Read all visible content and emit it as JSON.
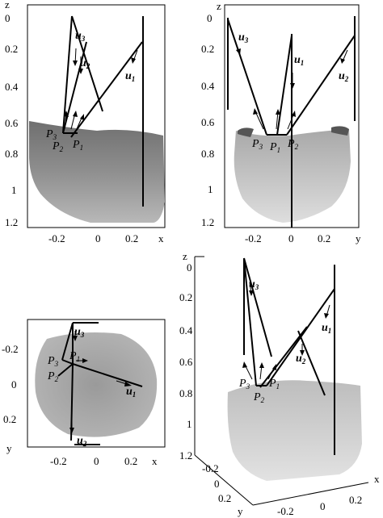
{
  "panels": {
    "top_left": {
      "vertical_axis_label": "z",
      "horizontal_axis_label": "x",
      "vertical_ticks": [
        "0",
        "0.2",
        "0.4",
        "0.6",
        "0.8",
        "1",
        "1.2"
      ],
      "horizontal_ticks": [
        "-0.2",
        "0",
        "0.2"
      ],
      "vectors": [
        {
          "main": "u",
          "sub": "3"
        },
        {
          "main": "u",
          "sub": "2"
        },
        {
          "main": "u",
          "sub": "1"
        }
      ],
      "points": [
        {
          "main": "P",
          "sub": "3"
        },
        {
          "main": "P",
          "sub": "2"
        },
        {
          "main": "P",
          "sub": "1"
        }
      ]
    },
    "top_right": {
      "vertical_axis_label": "z",
      "horizontal_axis_label": "y",
      "vertical_ticks": [
        "0",
        "0.2",
        "0.4",
        "0.6",
        "0.8",
        "1",
        "1.2"
      ],
      "horizontal_ticks": [
        "-0.2",
        "0",
        "0.2"
      ],
      "vectors": [
        {
          "main": "u",
          "sub": "3"
        },
        {
          "main": "u",
          "sub": "1"
        },
        {
          "main": "u",
          "sub": "2"
        }
      ],
      "points": [
        {
          "main": "P",
          "sub": "3"
        },
        {
          "main": "P",
          "sub": "1"
        },
        {
          "main": "P",
          "sub": "2"
        }
      ]
    },
    "bottom_left": {
      "vertical_axis_label": "y",
      "horizontal_axis_label": "x",
      "vertical_ticks": [
        "-0.2",
        "0",
        "0.2"
      ],
      "horizontal_ticks": [
        "-0.2",
        "0",
        "0.2"
      ],
      "vectors": [
        {
          "main": "u",
          "sub": "3"
        },
        {
          "main": "u",
          "sub": "1"
        },
        {
          "main": "u",
          "sub": "2"
        }
      ],
      "points": [
        {
          "main": "P",
          "sub": "3"
        },
        {
          "main": "P",
          "sub": "1"
        },
        {
          "main": "P",
          "sub": "2"
        }
      ]
    },
    "bottom_right": {
      "vertical_axis_label": "z",
      "x_axis_label": "x",
      "y_axis_label": "y",
      "vertical_ticks": [
        "0",
        "0.2",
        "0.4",
        "0.6",
        "0.8",
        "1",
        "1.2"
      ],
      "x_ticks": [
        "-0.2",
        "0",
        "0.2"
      ],
      "y_ticks": [
        "-0.2",
        "0",
        "0.2"
      ],
      "vectors": [
        {
          "main": "u",
          "sub": "3"
        },
        {
          "main": "u",
          "sub": "1"
        },
        {
          "main": "u",
          "sub": "2"
        }
      ],
      "points": [
        {
          "main": "P",
          "sub": "3"
        },
        {
          "main": "P",
          "sub": "1"
        },
        {
          "main": "P",
          "sub": "2"
        }
      ]
    }
  },
  "colors": {
    "background": "#ffffff",
    "ink": "#000000",
    "body_gray_dark": "#8a8a8a",
    "body_gray_mid": "#b4b4b4",
    "body_gray_light": "#d6d6d6"
  }
}
